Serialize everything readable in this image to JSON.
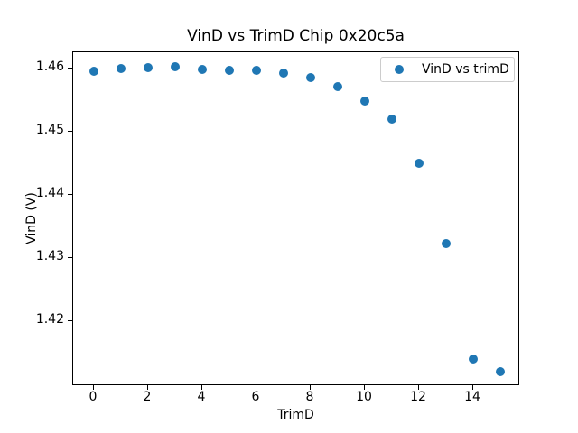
{
  "chart_data": {
    "type": "scatter",
    "title": "VinD vs TrimD Chip 0x20c5a",
    "xlabel": "TrimD",
    "ylabel": "VinD (V)",
    "x": [
      0,
      1,
      2,
      3,
      4,
      5,
      6,
      7,
      8,
      9,
      10,
      11,
      12,
      13,
      14,
      15
    ],
    "y": [
      1.4595,
      1.4599,
      1.4601,
      1.4602,
      1.4598,
      1.4596,
      1.4597,
      1.4592,
      1.4585,
      1.4571,
      1.4548,
      1.452,
      1.445,
      1.4323,
      1.414,
      1.412
    ],
    "series": [
      {
        "name": "VinD vs trimD",
        "marker": "circle",
        "color": "#1f77b4"
      }
    ],
    "xticks": [
      0,
      2,
      4,
      6,
      8,
      10,
      12,
      14
    ],
    "yticks": [
      1.42,
      1.43,
      1.44,
      1.45,
      1.46
    ],
    "xlim": [
      -0.75,
      15.75
    ],
    "ylim": [
      1.4097,
      1.4625
    ],
    "grid": false,
    "legend_position": "upper right",
    "colors": {
      "background": "#ffffff",
      "spine": "#000000",
      "text": "#000000",
      "marker": "#1f77b4",
      "legend_border": "#cccccc"
    }
  }
}
